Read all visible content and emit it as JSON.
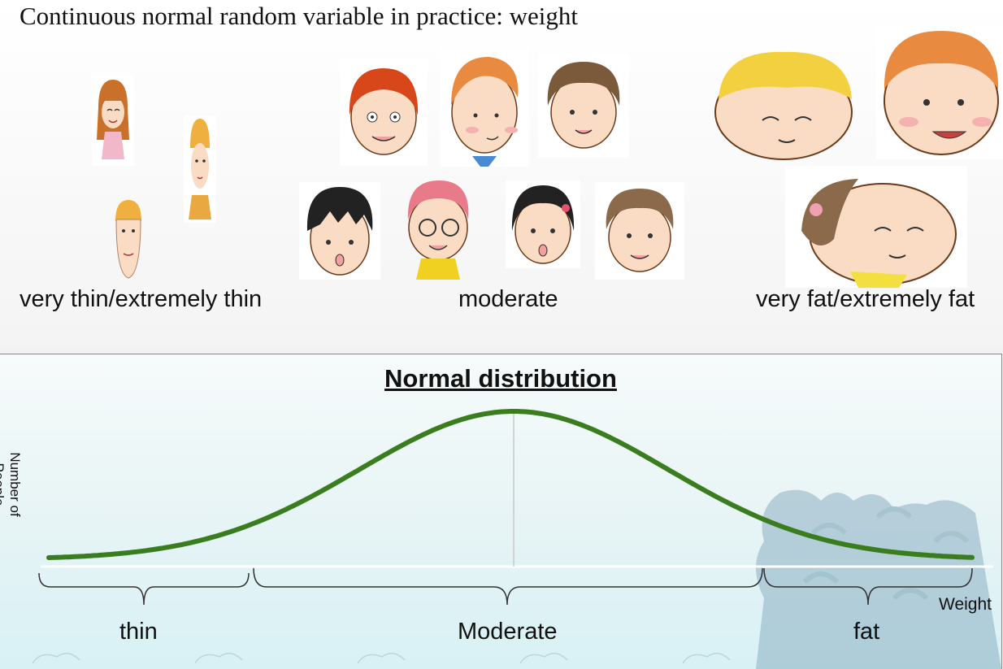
{
  "title": "Continuous normal random variable in practice: weight",
  "groups": {
    "thin": "very thin/extremely thin",
    "moderate": "moderate",
    "fat": "very fat/extremely fat"
  },
  "distribution": {
    "title": "Normal distribution",
    "ylabel": "Number of People",
    "xlabel": "Weight",
    "ranges": [
      "thin",
      "Moderate",
      "fat"
    ]
  },
  "colors": {
    "curve": "#3a7d1e",
    "baseline": "#ffffff",
    "background_top": "#ffffff",
    "panel_bottom": "#d8f1f5"
  },
  "icons": [
    "cartoon-face-icon"
  ]
}
